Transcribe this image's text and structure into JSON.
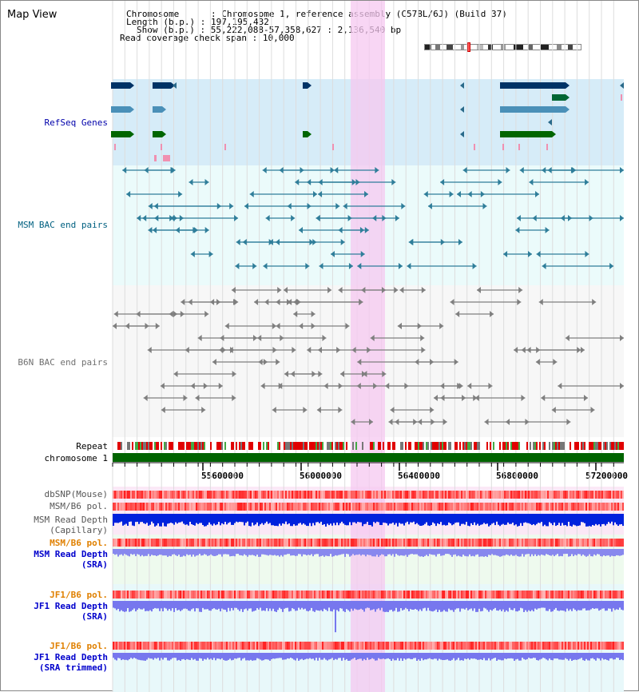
{
  "title": "Map View",
  "header": {
    "chromosome_label": "Chromosome",
    "chromosome_value": "Chromosome 1, reference assembly (C57BL/6J) (Build 37)",
    "length_label": "Length (b.p.)",
    "length_value": "197,195,432",
    "show_label": "Show (b.p.)",
    "show_value": "55,222,088-57,358,627 : 2,136,540 bp",
    "coverage_label": "Read coverage check span",
    "coverage_value": "10,000"
  },
  "tracks": {
    "refseq": "RefSeq Genes",
    "msm_bac": "MSM BAC end pairs",
    "b6n_bac": "B6N BAC end pairs",
    "repeat": "Repeat",
    "chromosome": "chromosome 1",
    "dbsnp": "dbSNP(Mouse)",
    "msm_b6_pol_1": "MSM/B6 pol.",
    "msm_depth_cap_1": "MSM Read Depth",
    "msm_depth_cap_2": "(Capillary)",
    "msm_b6_pol_2": "MSM/B6 pol.",
    "msm_depth_sra_1": "MSM Read Depth",
    "msm_depth_sra_2": "(SRA)",
    "jf1_b6_pol_1": "JF1/B6 pol.",
    "jf1_depth_sra_1": "JF1 Read Depth",
    "jf1_depth_sra_2": "(SRA)",
    "jf1_b6_pol_2": "JF1/B6 pol.",
    "jf1_depth_trim_1": "JF1 Read Depth",
    "jf1_depth_trim_2": "(SRA trimmed)"
  },
  "axis": {
    "ticks": [
      "55600000",
      "56000000",
      "56400000",
      "56800000",
      "57200000"
    ]
  },
  "colors": {
    "refseq_label": "#0000aa",
    "msm_label": "#006080",
    "b6n_label": "#707070",
    "pol_orange": "#e08000",
    "depth_blue": "#0000cc",
    "highlight": "#f6c8f0"
  }
}
